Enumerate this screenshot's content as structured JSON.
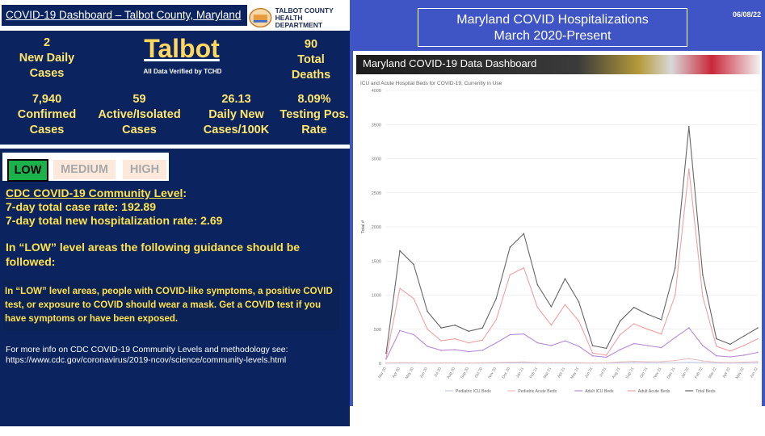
{
  "header": {
    "title": "COVID-19 Dashboard – Talbot County, Maryland",
    "logo_line1": "TALBOT COUNTY",
    "logo_line2": "HEALTH DEPARTMENT"
  },
  "stats": {
    "county": "Talbot",
    "verified": "All Data Verified by TCHD",
    "new_daily_value": "2",
    "new_daily_label1": "New Daily",
    "new_daily_label2": "Cases",
    "total_deaths_value": "90",
    "total_deaths_label1": "Total",
    "total_deaths_label2": "Deaths",
    "confirmed_value": "7,940",
    "confirmed_label1": "Confirmed",
    "confirmed_label2": "Cases",
    "active_value": "59",
    "active_label1": "Active/Isolated",
    "active_label2": "Cases",
    "per100k_value": "26.13",
    "per100k_label1": "Daily New",
    "per100k_label2": "Cases/100K",
    "testing_value": "8.09%",
    "testing_label1": "Testing Pos.",
    "testing_label2": "Rate"
  },
  "community": {
    "level_low": "LOW",
    "level_medium": "MEDIUM",
    "level_high": "HIGH",
    "heading": "CDC COVID-19 Community Level",
    "heading_colon": ":",
    "case_rate": "7-day total case rate:  192.89",
    "hosp_rate": "7-day total new hospitalization rate: 2.69",
    "guidance": "In “LOW” level areas the following guidance should be followed:",
    "mask_text": "In “LOW” level areas, people with COVID-like symptoms, a positive COVID test, or exposure to COVID should wear a mask. Get a COVID test if you have symptoms or have been exposed.",
    "more_info_1": "For more info on CDC COVID-19 Community Levels and methodology see:",
    "more_info_2": "https://www.cdc.gov/coronavirus/2019-ncov/science/community-levels.html"
  },
  "right_panel": {
    "title_line1": "Maryland COVID Hospitalizations",
    "title_line2": "March 2020-Present",
    "date": "06/08/22",
    "banner": "Maryland COVID-19 Data Dashboard"
  },
  "chart_data": {
    "type": "line",
    "title": "ICU and Acute Hospital Beds for COVID-19, Currently in Use",
    "ylabel": "Total #",
    "ylim": [
      0,
      4000
    ],
    "yticks": [
      "0",
      "500",
      "1000",
      "1500",
      "2000",
      "2500",
      "3000",
      "3500",
      "4000"
    ],
    "grid": true,
    "legend_position": "bottom",
    "x": [
      "Mar 20",
      "Apr 20",
      "May 20",
      "Jun 20",
      "Jul 20",
      "Aug 20",
      "Sep 20",
      "Oct 20",
      "Nov 20",
      "Dec 20",
      "Jan 21",
      "Feb 21",
      "Mar 21",
      "Apr 21",
      "May 21",
      "Jun 21",
      "Jul 21",
      "Aug 21",
      "Sep 21",
      "Oct 21",
      "Nov 21",
      "Dec 21",
      "Jan 22",
      "Feb 22",
      "Mar 22",
      "Apr 22",
      "May 22",
      "Jun 22"
    ],
    "series": [
      {
        "name": "Pediatric ICU Beds",
        "color": "#c9c9e8",
        "values": [
          2,
          4,
          4,
          3,
          3,
          3,
          3,
          4,
          5,
          6,
          6,
          5,
          4,
          4,
          4,
          3,
          4,
          6,
          8,
          7,
          7,
          10,
          16,
          10,
          5,
          4,
          5,
          6
        ]
      },
      {
        "name": "Pediatric Acute Beds",
        "color": "#e8c0c0",
        "values": [
          5,
          10,
          10,
          6,
          7,
          8,
          6,
          8,
          12,
          16,
          20,
          12,
          10,
          10,
          9,
          5,
          8,
          20,
          28,
          22,
          25,
          40,
          70,
          35,
          15,
          12,
          18,
          25
        ]
      },
      {
        "name": "Adult ICU Beds",
        "color": "#b98ad8",
        "values": [
          60,
          480,
          420,
          250,
          190,
          200,
          170,
          190,
          300,
          420,
          430,
          300,
          260,
          330,
          250,
          110,
          90,
          200,
          290,
          260,
          230,
          380,
          520,
          260,
          110,
          95,
          120,
          160
        ]
      },
      {
        "name": "Adult Acute Beds",
        "color": "#f2a0a0",
        "values": [
          80,
          1100,
          950,
          500,
          330,
          360,
          300,
          340,
          640,
          1300,
          1400,
          820,
          560,
          860,
          620,
          150,
          120,
          420,
          580,
          500,
          430,
          1000,
          2850,
          980,
          250,
          180,
          260,
          360
        ]
      },
      {
        "name": "Total Beds",
        "color": "#666666",
        "values": [
          150,
          1650,
          1450,
          760,
          520,
          560,
          470,
          520,
          950,
          1700,
          1900,
          1150,
          830,
          1240,
          900,
          260,
          220,
          620,
          820,
          720,
          640,
          1400,
          3470,
          1300,
          360,
          280,
          400,
          520
        ]
      }
    ]
  }
}
